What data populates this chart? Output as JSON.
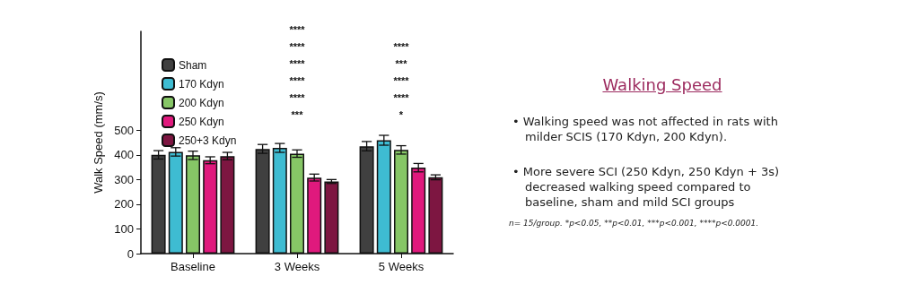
{
  "chart_data": {
    "type": "bar",
    "title": "Walking Speed",
    "ylabel": "Walk Speed (mm/s)",
    "categories": [
      "Baseline",
      "3 Weeks",
      "5 Weeks"
    ],
    "series": [
      {
        "name": "Sham",
        "color": "#404040",
        "values": [
          400,
          424,
          435
        ],
        "errors": [
          17,
          18,
          19
        ]
      },
      {
        "name": "170 Kdyn",
        "color": "#3ebcd2",
        "values": [
          412,
          428,
          459
        ],
        "errors": [
          17,
          18,
          20
        ]
      },
      {
        "name": "200 Kdyn",
        "color": "#86c666",
        "values": [
          398,
          405,
          420
        ],
        "errors": [
          17,
          15,
          17
        ]
      },
      {
        "name": "250 Kdyn",
        "color": "#e0197d",
        "values": [
          378,
          308,
          348
        ],
        "errors": [
          14,
          14,
          17
        ]
      },
      {
        "name": "250+3 Kdyn",
        "color": "#7d1641",
        "values": [
          395,
          292,
          309
        ],
        "errors": [
          15,
          8,
          10
        ]
      }
    ],
    "ylim": [
      0,
      900
    ],
    "yticks": [
      0,
      100,
      200,
      300,
      400,
      500
    ],
    "grid": false,
    "legend": "top left",
    "annotations": [
      "****",
      "****",
      "****",
      "****",
      "****",
      "***",
      "****",
      "***",
      "****",
      "****",
      "*",
      "• Walking speed was not affected in rats with milder SCIS (170 Kdyn, 200 Kdyn).",
      "• More severe SCI (250 Kdyn, 250 Kdyn + 3s) decreased walking speed compared to baseline, sham and mild SCI groups",
      "n= 15/group. *p<0.05, **p<0.01, ***p<0.001, ****p<0.0001."
    ]
  }
}
